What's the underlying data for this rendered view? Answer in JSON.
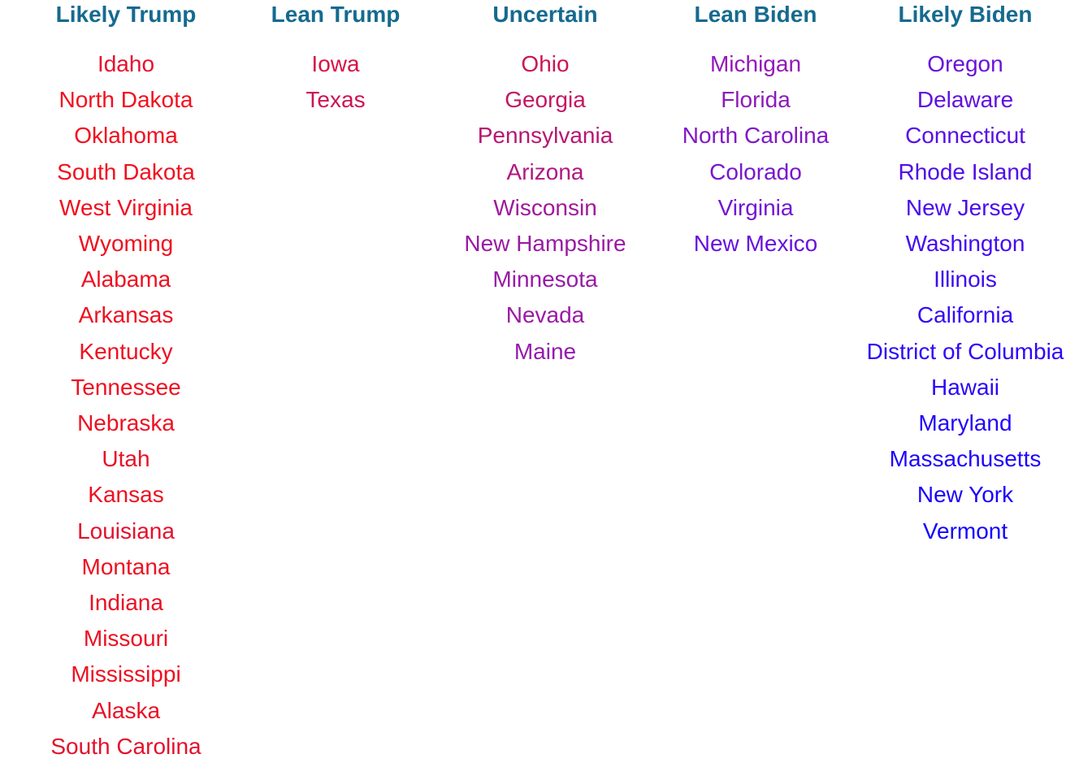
{
  "columns": [
    {
      "key": "likely_trump",
      "title": "Likely Trump",
      "states": [
        "Idaho",
        "North Dakota",
        "Oklahoma",
        "South Dakota",
        "West Virginia",
        "Wyoming",
        "Alabama",
        "Arkansas",
        "Kentucky",
        "Tennessee",
        "Nebraska",
        "Utah",
        "Kansas",
        "Louisiana",
        "Montana",
        "Indiana",
        "Missouri",
        "Mississippi",
        "Alaska",
        "South Carolina"
      ],
      "colors": [
        "#e8102e",
        "#f2101e",
        "#f0101f",
        "#f1101e",
        "#ef101f",
        "#ee1020",
        "#ee1021",
        "#ee1020",
        "#ee1020",
        "#ee1020",
        "#ee1021",
        "#e81027",
        "#ee1020",
        "#e6102c",
        "#ee1021",
        "#ea1025",
        "#ec1023",
        "#ee1021",
        "#ea1026",
        "#e4102c"
      ]
    },
    {
      "key": "lean_trump",
      "title": "Lean Trump",
      "states": [
        "Iowa",
        "Texas"
      ],
      "colors": [
        "#d81245",
        "#cc1455"
      ]
    },
    {
      "key": "uncertain",
      "title": "Uncertain",
      "states": [
        "Ohio",
        "Georgia",
        "Pennsylvania",
        "Arizona",
        "Wisconsin",
        "New Hampshire",
        "Minnesota",
        "Nevada",
        "Maine"
      ],
      "colors": [
        "#cc1455",
        "#c41562",
        "#b81672",
        "#b01880",
        "#a0199b",
        "#9a1aa5",
        "#981aa8",
        "#9a1aa5",
        "#941bae"
      ]
    },
    {
      "key": "lean_biden",
      "title": "Lean Biden",
      "states": [
        "Michigan",
        "Florida",
        "North Carolina",
        "Colorado",
        "Virginia",
        "New Mexico"
      ],
      "colors": [
        "#9418b8",
        "#8e1ab9",
        "#8018c6",
        "#7816cd",
        "#7414d2",
        "#6812dc"
      ]
    },
    {
      "key": "likely_biden",
      "title": "Likely Biden",
      "states": [
        "Oregon",
        "Delaware",
        "Connecticut",
        "Rhode Island",
        "New Jersey",
        "Washington",
        "Illinois",
        "California",
        "District of Columbia",
        "Hawaii",
        "Maryland",
        "Massachusetts",
        "New York",
        "Vermont"
      ],
      "colors": [
        "#6a12d8",
        "#6010df",
        "#580ee6",
        "#500ee8",
        "#4a0ced",
        "#440cf0",
        "#3c0af2",
        "#340af5",
        "#2e08f7",
        "#2a08f8",
        "#2206fa",
        "#1e06fb",
        "#1a04fc",
        "#1404fd"
      ]
    }
  ]
}
